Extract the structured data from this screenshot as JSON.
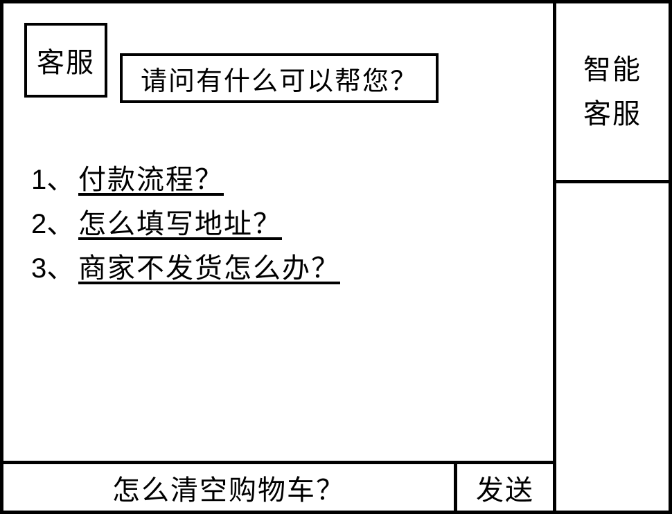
{
  "colors": {
    "border": "#000000",
    "background": "#ffffff",
    "text": "#000000"
  },
  "chat": {
    "avatar_label": "客服",
    "greeting": "请问有什么可以帮您？",
    "faq": [
      {
        "num": "1、",
        "text": "付款流程？"
      },
      {
        "num": "2、",
        "text": "怎么填写地址？"
      },
      {
        "num": "3、",
        "text": "商家不发货怎么办？"
      }
    ]
  },
  "input": {
    "value": "怎么清空购物车？",
    "send_label": "发送"
  },
  "sidebar": {
    "title": "智能\n客服"
  }
}
